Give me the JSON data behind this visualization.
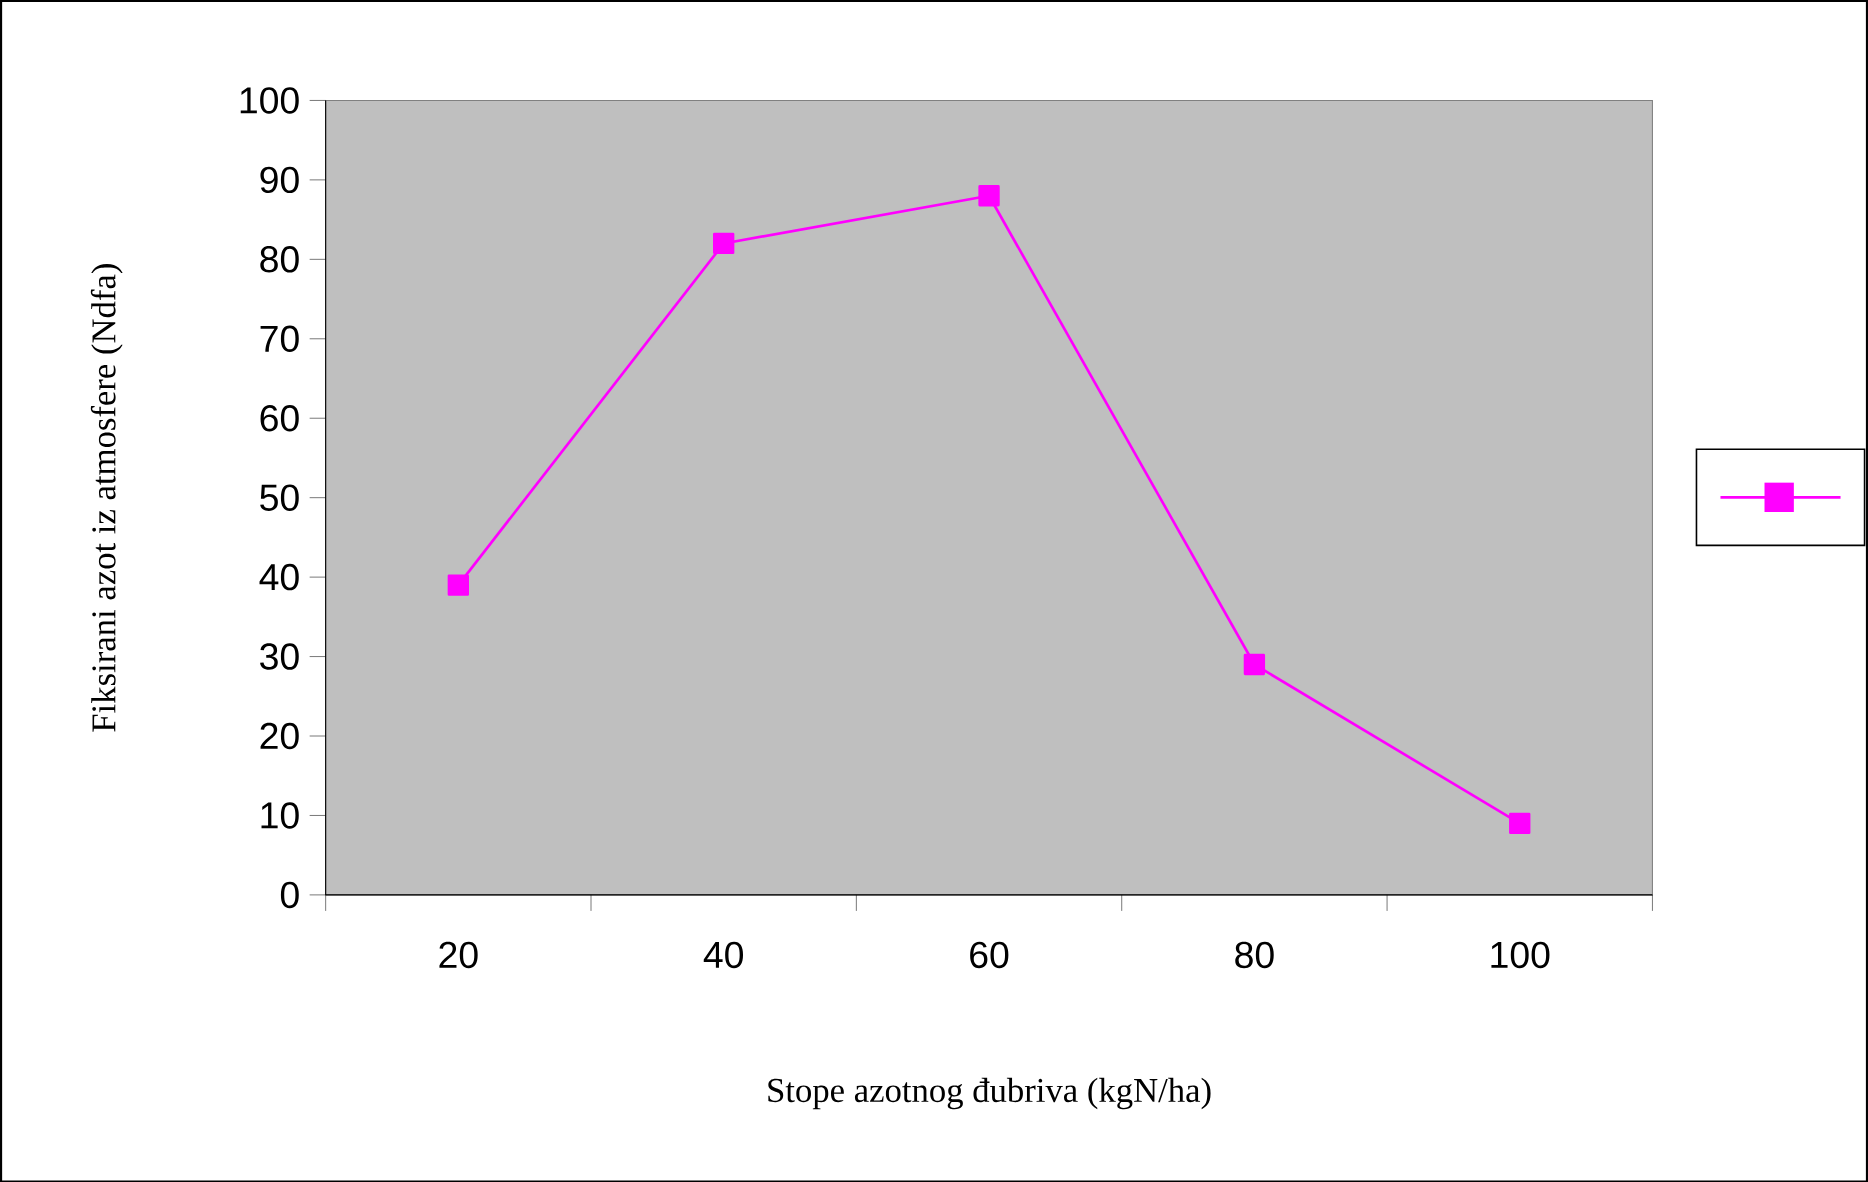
{
  "chart_data": {
    "type": "line",
    "xlabel": "Stope azotnog đubriva (kgN/ha)",
    "ylabel": "Fiksirani azot iz atmosfere (Ndfa)",
    "categories": [
      "20",
      "40",
      "60",
      "80",
      "100"
    ],
    "series": [
      {
        "color": "#ff00ff",
        "values": [
          39,
          82,
          88,
          29,
          9
        ]
      }
    ],
    "ylim": [
      0,
      100
    ],
    "yticks": [
      0,
      10,
      20,
      30,
      40,
      50,
      60,
      70,
      80,
      90,
      100
    ],
    "marker": "square",
    "line_style": "solid"
  }
}
